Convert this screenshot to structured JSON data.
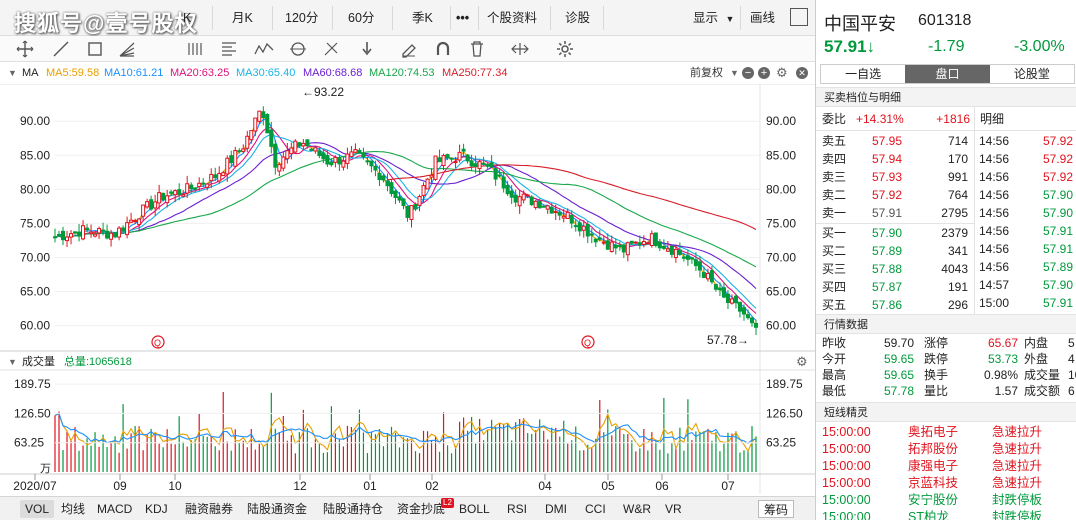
{
  "topbar": {
    "watermark": "搜狐号@壹号股权",
    "items": [
      "月K",
      "120分",
      "60分",
      "季K",
      "•••",
      "个股资料",
      "诊股"
    ],
    "display_label": "显示",
    "draw_label": "画线",
    "cut_k": "K"
  },
  "toolbar": {
    "tools": [
      "crosshair-icon",
      "line-icon",
      "rect-icon",
      "fan-icon",
      "parallel-icon",
      "fib-icon",
      "wave-icon",
      "cycle-icon",
      "gann-icon",
      "arrow-down-icon",
      "eraser-icon",
      "magnet-icon",
      "trash-icon",
      "shrink-icon",
      "settings-icon"
    ]
  },
  "ma": {
    "label": "MA",
    "items": [
      {
        "text": "MA5:59.58",
        "color": "#e8a000"
      },
      {
        "text": "MA10:61.21",
        "color": "#1e90ff"
      },
      {
        "text": "MA20:63.25",
        "color": "#e0107c"
      },
      {
        "text": "MA30:65.40",
        "color": "#1ab3e8"
      },
      {
        "text": "MA60:68.68",
        "color": "#6a1fd0"
      },
      {
        "text": "MA120:74.53",
        "color": "#18a84a"
      },
      {
        "text": "MA250:77.34",
        "color": "#d81e2a"
      }
    ],
    "adjust_label": "前复权"
  },
  "price_axis": {
    "ticks": [
      "90.00",
      "85.00",
      "80.00",
      "75.00",
      "70.00",
      "65.00",
      "60.00"
    ],
    "min": 57,
    "max": 94
  },
  "markers": {
    "high": "←93.22",
    "low": "57.78→",
    "q": "Q"
  },
  "volume": {
    "title": "成交量",
    "total_label": "总量:1065618",
    "ticks": [
      "189.75",
      "126.50",
      "63.25"
    ],
    "unit": "万",
    "max": 190
  },
  "time_axis": {
    "labels": [
      "2020/07",
      "09",
      "10",
      "12",
      "01",
      "02",
      "04",
      "05",
      "06",
      "07"
    ]
  },
  "bottom_tabs": {
    "items": [
      "VOL",
      "均线",
      "MACD",
      "KDJ",
      "融资融券",
      "陆股通资金",
      "陆股通持仓",
      "资金抄底",
      "BOLL",
      "RSI",
      "DMI",
      "CCI",
      "W&R",
      "VR"
    ],
    "chip_label": "筹码",
    "badge": "L2"
  },
  "panel": {
    "name": "中国平安",
    "code": "601318",
    "price": "57.91",
    "arrow": "↓",
    "change": "-1.79",
    "pct": "-3.00%",
    "tabs": [
      "一自选",
      "盘口",
      "论股堂"
    ],
    "order_title": "买卖档位与明细",
    "ratio_label": "委比",
    "ratio_pct": "+14.31%",
    "ratio_val": "+1816",
    "detail_label": "明细",
    "asks": [
      {
        "label": "卖五",
        "price": "57.95",
        "vol": "714"
      },
      {
        "label": "卖四",
        "price": "57.94",
        "vol": "170"
      },
      {
        "label": "卖三",
        "price": "57.93",
        "vol": "991"
      },
      {
        "label": "卖二",
        "price": "57.92",
        "vol": "764"
      },
      {
        "label": "卖一",
        "price": "57.91",
        "vol": "2795"
      }
    ],
    "bids": [
      {
        "label": "买一",
        "price": "57.90",
        "vol": "2379"
      },
      {
        "label": "买二",
        "price": "57.89",
        "vol": "341"
      },
      {
        "label": "买三",
        "price": "57.88",
        "vol": "4043"
      },
      {
        "label": "买四",
        "price": "57.87",
        "vol": "191"
      },
      {
        "label": "买五",
        "price": "57.86",
        "vol": "296"
      }
    ],
    "ticks": [
      {
        "time": "14:56",
        "price": "57.92",
        "c": "red"
      },
      {
        "time": "14:56",
        "price": "57.92",
        "c": "red"
      },
      {
        "time": "14:56",
        "price": "57.92",
        "c": "red"
      },
      {
        "time": "14:56",
        "price": "57.90",
        "c": "green"
      },
      {
        "time": "14:56",
        "price": "57.90",
        "c": "green"
      },
      {
        "time": "14:56",
        "price": "57.91",
        "c": "green"
      },
      {
        "time": "14:56",
        "price": "57.91",
        "c": "green"
      },
      {
        "time": "14:56",
        "price": "57.89",
        "c": "green"
      },
      {
        "time": "14:57",
        "price": "57.90",
        "c": "green"
      },
      {
        "time": "15:00",
        "price": "57.91",
        "c": "green"
      }
    ],
    "quote_title": "行情数据",
    "quote": [
      {
        "k1": "昨收",
        "v1": "59.70",
        "c1": "",
        "k2": "涨停",
        "v2": "65.67",
        "c2": "red",
        "k3": "内盘",
        "v3": "5"
      },
      {
        "k1": "今开",
        "v1": "59.65",
        "c1": "green",
        "k2": "跌停",
        "v2": "53.73",
        "c2": "green",
        "k3": "外盘",
        "v3": "4"
      },
      {
        "k1": "最高",
        "v1": "59.65",
        "c1": "green",
        "k2": "换手",
        "v2": "0.98%",
        "c2": "",
        "k3": "成交量",
        "v3": "10"
      },
      {
        "k1": "最低",
        "v1": "57.78",
        "c1": "green",
        "k2": "量比",
        "v2": "1.57",
        "c2": "",
        "k3": "成交额",
        "v3": "6"
      }
    ],
    "news_title": "短线精灵",
    "news": [
      {
        "time": "15:00:00",
        "name": "奥拓电子",
        "event": "急速拉升",
        "c": "red"
      },
      {
        "time": "15:00:00",
        "name": "拓邦股份",
        "event": "急速拉升",
        "c": "red"
      },
      {
        "time": "15:00:00",
        "name": "康强电子",
        "event": "急速拉升",
        "c": "red"
      },
      {
        "time": "15:00:00",
        "name": "京蓝科技",
        "event": "急速拉升",
        "c": "red"
      },
      {
        "time": "15:00:00",
        "name": "安宁股份",
        "event": "封跌停板",
        "c": "green"
      },
      {
        "time": "15:00:00",
        "name": "ST柏龙",
        "event": "封跌停板",
        "c": "green"
      }
    ]
  }
}
